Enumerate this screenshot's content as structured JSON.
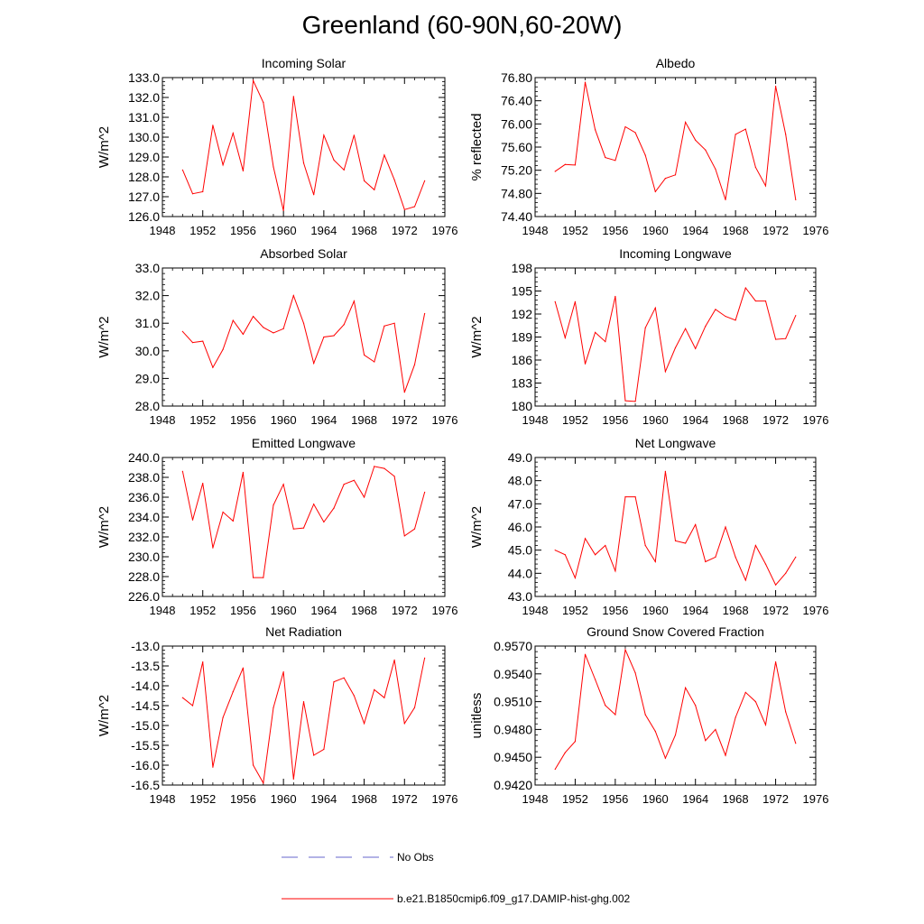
{
  "title": "Greenland (60-90N,60-20W)",
  "series_color": "#ff0000",
  "obs_color": "#6666cc",
  "legend": {
    "obs_label": "No Obs",
    "model_label": "b.e21.B1850cmip6.f09_g17.DAMIP-hist-ghg.002"
  },
  "chart_data": [
    {
      "type": "line",
      "title": "Incoming Solar",
      "ylabel": "W/m^2",
      "xlim": [
        1948,
        1976
      ],
      "xticks": [
        1948,
        1952,
        1956,
        1960,
        1964,
        1968,
        1972,
        1976
      ],
      "ylim": [
        126.0,
        133.0
      ],
      "yticks": [
        "126.0",
        "127.0",
        "128.0",
        "129.0",
        "130.0",
        "131.0",
        "132.0",
        "133.0"
      ],
      "x": [
        1950,
        1951,
        1952,
        1953,
        1954,
        1955,
        1956,
        1957,
        1958,
        1959,
        1960,
        1961,
        1962,
        1963,
        1964,
        1965,
        1966,
        1967,
        1968,
        1969,
        1970,
        1971,
        1972,
        1973,
        1974
      ],
      "values": [
        128.35,
        127.15,
        127.25,
        130.6,
        128.6,
        130.2,
        128.3,
        132.85,
        131.75,
        128.5,
        126.3,
        132.05,
        128.7,
        127.1,
        130.1,
        128.85,
        128.35,
        130.1,
        127.8,
        127.35,
        129.1,
        127.85,
        126.35,
        126.5,
        127.8
      ]
    },
    {
      "type": "line",
      "title": "Albedo",
      "ylabel": "% reflected",
      "xlim": [
        1948,
        1976
      ],
      "xticks": [
        1948,
        1952,
        1956,
        1960,
        1964,
        1968,
        1972,
        1976
      ],
      "ylim": [
        74.4,
        76.8
      ],
      "yticks": [
        "74.40",
        "74.80",
        "75.20",
        "75.60",
        "76.00",
        "76.40",
        "76.80"
      ],
      "x": [
        1950,
        1951,
        1952,
        1953,
        1954,
        1955,
        1956,
        1957,
        1958,
        1959,
        1960,
        1961,
        1962,
        1963,
        1964,
        1965,
        1966,
        1967,
        1968,
        1969,
        1970,
        1971,
        1972,
        1973,
        1974
      ],
      "values": [
        75.18,
        75.3,
        75.29,
        76.72,
        75.9,
        75.42,
        75.37,
        75.95,
        75.85,
        75.46,
        74.83,
        75.06,
        75.12,
        76.03,
        75.72,
        75.55,
        75.22,
        74.69,
        75.82,
        75.91,
        75.25,
        74.93,
        76.65,
        75.82,
        74.69
      ]
    },
    {
      "type": "line",
      "title": "Absorbed Solar",
      "ylabel": "W/m^2",
      "xlim": [
        1948,
        1976
      ],
      "xticks": [
        1948,
        1952,
        1956,
        1960,
        1964,
        1968,
        1972,
        1976
      ],
      "ylim": [
        28.0,
        33.0
      ],
      "yticks": [
        "28.0",
        "29.0",
        "30.0",
        "31.0",
        "32.0",
        "33.0"
      ],
      "x": [
        1950,
        1951,
        1952,
        1953,
        1954,
        1955,
        1956,
        1957,
        1958,
        1959,
        1960,
        1961,
        1962,
        1963,
        1964,
        1965,
        1966,
        1967,
        1968,
        1969,
        1970,
        1971,
        1972,
        1973,
        1974
      ],
      "values": [
        30.7,
        30.3,
        30.35,
        29.4,
        30.05,
        31.1,
        30.6,
        31.25,
        30.85,
        30.65,
        30.8,
        32.0,
        31.0,
        29.55,
        30.5,
        30.55,
        30.95,
        31.8,
        29.85,
        29.6,
        30.9,
        31.0,
        28.5,
        29.5,
        31.35
      ]
    },
    {
      "type": "line",
      "title": "Incoming Longwave",
      "ylabel": "W/m^2",
      "xlim": [
        1948,
        1976
      ],
      "xticks": [
        1948,
        1952,
        1956,
        1960,
        1964,
        1968,
        1972,
        1976
      ],
      "ylim": [
        180,
        198
      ],
      "yticks": [
        "180",
        "183",
        "186",
        "189",
        "192",
        "195",
        "198"
      ],
      "x": [
        1950,
        1951,
        1952,
        1953,
        1954,
        1955,
        1956,
        1957,
        1958,
        1959,
        1960,
        1961,
        1962,
        1963,
        1964,
        1965,
        1966,
        1967,
        1968,
        1969,
        1970,
        1971,
        1972,
        1973,
        1974
      ],
      "values": [
        193.6,
        188.9,
        193.6,
        185.5,
        189.6,
        188.4,
        194.3,
        180.7,
        180.6,
        190.2,
        192.8,
        184.5,
        187.6,
        190.1,
        187.5,
        190.4,
        192.6,
        191.7,
        191.2,
        195.4,
        193.7,
        193.7,
        188.7,
        188.8,
        191.8
      ]
    },
    {
      "type": "line",
      "title": "Emitted Longwave",
      "ylabel": "W/m^2",
      "xlim": [
        1948,
        1976
      ],
      "xticks": [
        1948,
        1952,
        1956,
        1960,
        1964,
        1968,
        1972,
        1976
      ],
      "ylim": [
        226.0,
        240.0
      ],
      "yticks": [
        "226.0",
        "228.0",
        "230.0",
        "232.0",
        "234.0",
        "236.0",
        "238.0",
        "240.0"
      ],
      "x": [
        1950,
        1951,
        1952,
        1953,
        1954,
        1955,
        1956,
        1957,
        1958,
        1959,
        1960,
        1961,
        1962,
        1963,
        1964,
        1965,
        1966,
        1967,
        1968,
        1969,
        1970,
        1971,
        1972,
        1973,
        1974
      ],
      "values": [
        238.6,
        233.7,
        237.4,
        230.9,
        234.5,
        233.6,
        238.5,
        227.9,
        227.9,
        235.2,
        237.3,
        232.8,
        232.9,
        235.3,
        233.5,
        234.9,
        237.3,
        237.7,
        236.0,
        239.1,
        238.9,
        238.1,
        232.1,
        232.8,
        236.5
      ]
    },
    {
      "type": "line",
      "title": "Net Longwave",
      "ylabel": "W/m^2",
      "xlim": [
        1948,
        1976
      ],
      "xticks": [
        1948,
        1952,
        1956,
        1960,
        1964,
        1968,
        1972,
        1976
      ],
      "ylim": [
        43.0,
        49.0
      ],
      "yticks": [
        "43.0",
        "44.0",
        "45.0",
        "46.0",
        "47.0",
        "48.0",
        "49.0"
      ],
      "x": [
        1950,
        1951,
        1952,
        1953,
        1954,
        1955,
        1956,
        1957,
        1958,
        1959,
        1960,
        1961,
        1962,
        1963,
        1964,
        1965,
        1966,
        1967,
        1968,
        1969,
        1970,
        1971,
        1972,
        1973,
        1974
      ],
      "values": [
        45.0,
        44.8,
        43.8,
        45.5,
        44.8,
        45.2,
        44.1,
        47.3,
        47.3,
        45.2,
        44.5,
        48.4,
        45.4,
        45.3,
        46.1,
        44.5,
        44.7,
        46.0,
        44.7,
        43.7,
        45.2,
        44.4,
        43.5,
        44.0,
        44.7
      ]
    },
    {
      "type": "line",
      "title": "Net Radiation",
      "ylabel": "W/m^2",
      "xlim": [
        1948,
        1976
      ],
      "xticks": [
        1948,
        1952,
        1956,
        1960,
        1964,
        1968,
        1972,
        1976
      ],
      "ylim": [
        -16.5,
        -13.0
      ],
      "yticks": [
        "-16.5",
        "-16.0",
        "-15.5",
        "-15.0",
        "-14.5",
        "-14.0",
        "-13.5",
        "-13.0"
      ],
      "x": [
        1950,
        1951,
        1952,
        1953,
        1954,
        1955,
        1956,
        1957,
        1958,
        1959,
        1960,
        1961,
        1962,
        1963,
        1964,
        1965,
        1966,
        1967,
        1968,
        1969,
        1970,
        1971,
        1972,
        1973,
        1974
      ],
      "values": [
        -14.3,
        -14.5,
        -13.4,
        -16.05,
        -14.8,
        -14.15,
        -13.55,
        -16.0,
        -16.45,
        -14.55,
        -13.65,
        -16.35,
        -14.4,
        -15.75,
        -15.6,
        -13.9,
        -13.8,
        -14.25,
        -14.95,
        -14.1,
        -14.3,
        -13.35,
        -14.95,
        -14.55,
        -13.3
      ]
    },
    {
      "type": "line",
      "title": "Ground Snow Covered Fraction",
      "ylabel": "unitless",
      "xlim": [
        1948,
        1976
      ],
      "xticks": [
        1948,
        1952,
        1956,
        1960,
        1964,
        1968,
        1972,
        1976
      ],
      "ylim": [
        0.942,
        0.957
      ],
      "yticks": [
        "0.9420",
        "0.9450",
        "0.9480",
        "0.9510",
        "0.9540",
        "0.9570"
      ],
      "x": [
        1950,
        1951,
        1952,
        1953,
        1954,
        1955,
        1956,
        1957,
        1958,
        1959,
        1960,
        1961,
        1962,
        1963,
        1964,
        1965,
        1966,
        1967,
        1968,
        1969,
        1970,
        1971,
        1972,
        1973,
        1974
      ],
      "values": [
        0.9437,
        0.9455,
        0.9467,
        0.9561,
        0.9534,
        0.9506,
        0.9496,
        0.9566,
        0.9541,
        0.9496,
        0.9478,
        0.9449,
        0.9474,
        0.9525,
        0.9506,
        0.9468,
        0.948,
        0.9452,
        0.9493,
        0.952,
        0.951,
        0.9485,
        0.9553,
        0.9499,
        0.9465
      ]
    }
  ]
}
